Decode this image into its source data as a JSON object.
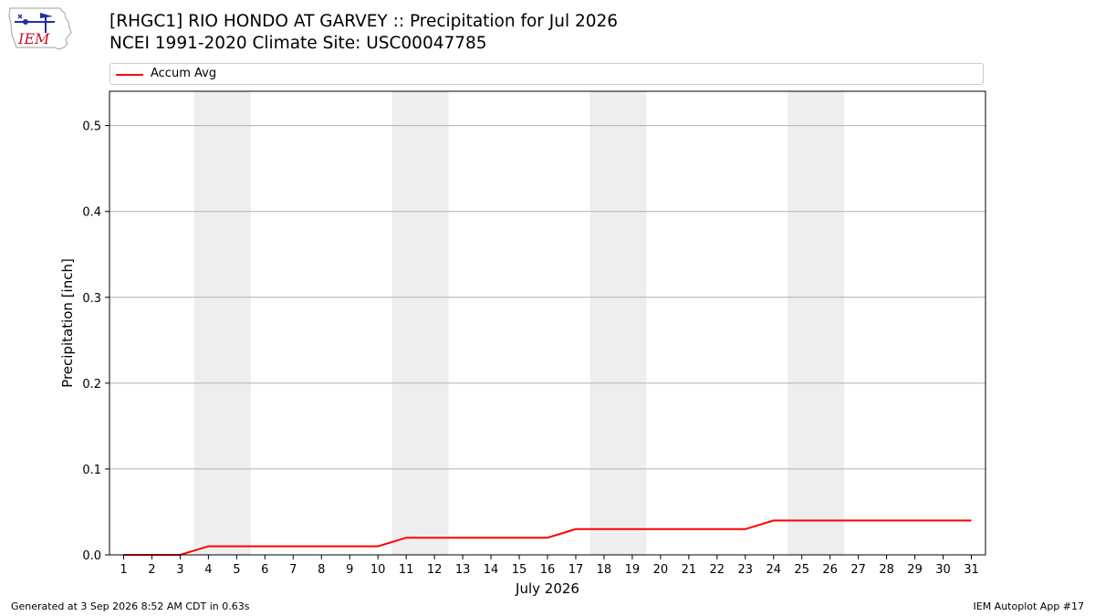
{
  "logo": {
    "text": "IEM"
  },
  "header": {
    "title_line1": "[RHGC1] RIO HONDO AT GARVEY :: Precipitation for Jul 2026",
    "title_line2": "NCEI 1991-2020 Climate Site: USC00047785"
  },
  "colors": {
    "series": "#ff0000",
    "weekend_shade": "#eeeeee",
    "grid": "#b0b0b0"
  },
  "chart_data": {
    "type": "line",
    "title": "[RHGC1] RIO HONDO AT GARVEY :: Precipitation for Jul 2026",
    "subtitle": "NCEI 1991-2020 Climate Site: USC00047785",
    "xlabel": "July 2026",
    "ylabel": "Precipitation [inch]",
    "xlim": [
      0.5,
      31.5
    ],
    "ylim": [
      0,
      0.54
    ],
    "x": [
      1,
      2,
      3,
      4,
      5,
      6,
      7,
      8,
      9,
      10,
      11,
      12,
      13,
      14,
      15,
      16,
      17,
      18,
      19,
      20,
      21,
      22,
      23,
      24,
      25,
      26,
      27,
      28,
      29,
      30,
      31
    ],
    "x_tick_labels": [
      "1",
      "2",
      "3",
      "4",
      "5",
      "6",
      "7",
      "8",
      "9",
      "10",
      "11",
      "12",
      "13",
      "14",
      "15",
      "16",
      "17",
      "18",
      "19",
      "20",
      "21",
      "22",
      "23",
      "24",
      "25",
      "26",
      "27",
      "28",
      "29",
      "30",
      "31"
    ],
    "y_ticks": [
      0.0,
      0.1,
      0.2,
      0.3,
      0.4,
      0.5
    ],
    "y_tick_labels": [
      "0.0",
      "0.1",
      "0.2",
      "0.3",
      "0.4",
      "0.5"
    ],
    "grid": "horizontal",
    "legend_position": "top",
    "shaded_days": [
      [
        4,
        5
      ],
      [
        11,
        12
      ],
      [
        18,
        19
      ],
      [
        25,
        26
      ]
    ],
    "series": [
      {
        "name": "Accum Avg",
        "color": "#ff0000",
        "values": [
          0.0,
          0.0,
          0.0,
          0.01,
          0.01,
          0.01,
          0.01,
          0.01,
          0.01,
          0.01,
          0.02,
          0.02,
          0.02,
          0.02,
          0.02,
          0.02,
          0.03,
          0.03,
          0.03,
          0.03,
          0.03,
          0.03,
          0.03,
          0.04,
          0.04,
          0.04,
          0.04,
          0.04,
          0.04,
          0.04,
          0.04
        ]
      }
    ]
  },
  "footer": {
    "generated": "Generated at 3 Sep 2026 8:52 AM CDT in 0.63s",
    "app": "IEM Autoplot App #17"
  }
}
